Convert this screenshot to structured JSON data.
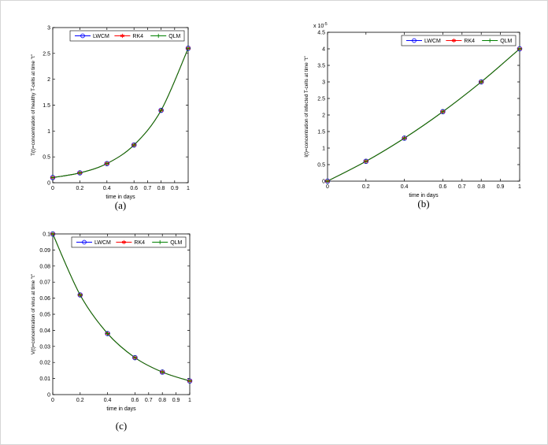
{
  "figure": {
    "background": "#ffffff"
  },
  "legend": {
    "entries": [
      "LWCM",
      "RK4",
      "QLM"
    ]
  },
  "chart_data": [
    {
      "type": "line",
      "subplot": "a",
      "caption": "(a)",
      "title": "",
      "xlabel": "time in days",
      "ylabel": "T(t)=concentration of healthy T-cells at time \"t\"",
      "xlim": [
        0,
        1
      ],
      "ylim": [
        0,
        3
      ],
      "xticks": [
        0,
        0.2,
        0.4,
        0.6,
        0.7,
        0.8,
        0.9,
        1
      ],
      "xtick_labels": [
        "0",
        "0.2",
        "0.4",
        "0.6",
        "0.7",
        "0.8",
        "0.9",
        "1"
      ],
      "yticks": [
        0,
        0.5,
        1,
        1.5,
        2,
        2.5,
        3
      ],
      "ytick_labels": [
        "0",
        "0.5",
        "1",
        "1.5",
        "2",
        "2.5",
        "3"
      ],
      "x": [
        0,
        0.2,
        0.4,
        0.6,
        0.8,
        1
      ],
      "series": [
        {
          "name": "LWCM",
          "marker": "circle",
          "color": "#0000ff",
          "values": [
            0.1,
            0.19,
            0.37,
            0.73,
            1.4,
            2.6
          ]
        },
        {
          "name": "RK4",
          "marker": "star",
          "color": "#ff0000",
          "values": [
            0.1,
            0.19,
            0.37,
            0.73,
            1.4,
            2.6
          ]
        },
        {
          "name": "QLM",
          "marker": "plus",
          "color": "#008000",
          "values": [
            0.1,
            0.19,
            0.37,
            0.73,
            1.4,
            2.6
          ]
        }
      ],
      "line_color": "#008000",
      "legend_position": "top-right",
      "grid": false
    },
    {
      "type": "line",
      "subplot": "b",
      "caption": "(b)",
      "title": "",
      "xlabel": "time in days",
      "ylabel": "I(t)=concentration of infected T-cells at time \"t\"",
      "y_exponent_label": {
        "base": "x 10",
        "exp": "-5"
      },
      "xlim": [
        0,
        1
      ],
      "ylim": [
        0,
        4.5
      ],
      "xticks": [
        0,
        0.2,
        0.4,
        0.6,
        0.7,
        0.8,
        0.9,
        1
      ],
      "xtick_labels": [
        "0",
        "0.2",
        "0.4",
        "0.6",
        "0.7",
        "0.8",
        "0.9",
        "1"
      ],
      "yticks": [
        0,
        0.5,
        1,
        1.5,
        2,
        2.5,
        3,
        3.5,
        4,
        4.5
      ],
      "ytick_labels": [
        "0",
        "0.5",
        "1",
        "1.5",
        "2",
        "2.5",
        "3",
        "3.5",
        "4",
        "4.5"
      ],
      "x": [
        0,
        0.2,
        0.4,
        0.6,
        0.8,
        1
      ],
      "series": [
        {
          "name": "LWCM",
          "marker": "circle",
          "color": "#0000ff",
          "values": [
            0,
            0.6,
            1.3,
            2.1,
            3.0,
            4.0
          ]
        },
        {
          "name": "RK4",
          "marker": "star",
          "color": "#ff0000",
          "values": [
            0,
            0.6,
            1.3,
            2.1,
            3.0,
            4.0
          ]
        },
        {
          "name": "QLM",
          "marker": "plus",
          "color": "#008000",
          "values": [
            0,
            0.6,
            1.3,
            2.1,
            3.0,
            4.0
          ]
        }
      ],
      "line_color": "#008000",
      "legend_position": "top-right",
      "grid": false
    },
    {
      "type": "line",
      "subplot": "c",
      "caption": "(c)",
      "title": "",
      "xlabel": "time in days",
      "ylabel": "V(t)=concentration of virus at time \"t\"",
      "xlim": [
        0,
        1
      ],
      "ylim": [
        0,
        0.1
      ],
      "xticks": [
        0,
        0.2,
        0.4,
        0.6,
        0.7,
        0.8,
        0.9,
        1
      ],
      "xtick_labels": [
        "0",
        "0.2",
        "0.4",
        "0.6",
        "0.7",
        "0.8",
        "0.9",
        "1"
      ],
      "yticks": [
        0,
        0.01,
        0.02,
        0.03,
        0.04,
        0.05,
        0.06,
        0.07,
        0.08,
        0.09,
        0.1
      ],
      "ytick_labels": [
        "0",
        "0.01",
        "0.02",
        "0.03",
        "0.04",
        "0.05",
        "0.06",
        "0.07",
        "0.08",
        "0.09",
        "0.1"
      ],
      "x": [
        0,
        0.2,
        0.4,
        0.6,
        0.8,
        1
      ],
      "series": [
        {
          "name": "LWCM",
          "marker": "circle",
          "color": "#0000ff",
          "values": [
            0.1,
            0.062,
            0.038,
            0.023,
            0.014,
            0.0085
          ]
        },
        {
          "name": "RK4",
          "marker": "star",
          "color": "#ff0000",
          "values": [
            0.1,
            0.062,
            0.038,
            0.023,
            0.014,
            0.0085
          ]
        },
        {
          "name": "QLM",
          "marker": "plus",
          "color": "#008000",
          "values": [
            0.1,
            0.062,
            0.038,
            0.023,
            0.014,
            0.0085
          ]
        }
      ],
      "line_color": "#008000",
      "legend_position": "top-right",
      "grid": false
    }
  ]
}
